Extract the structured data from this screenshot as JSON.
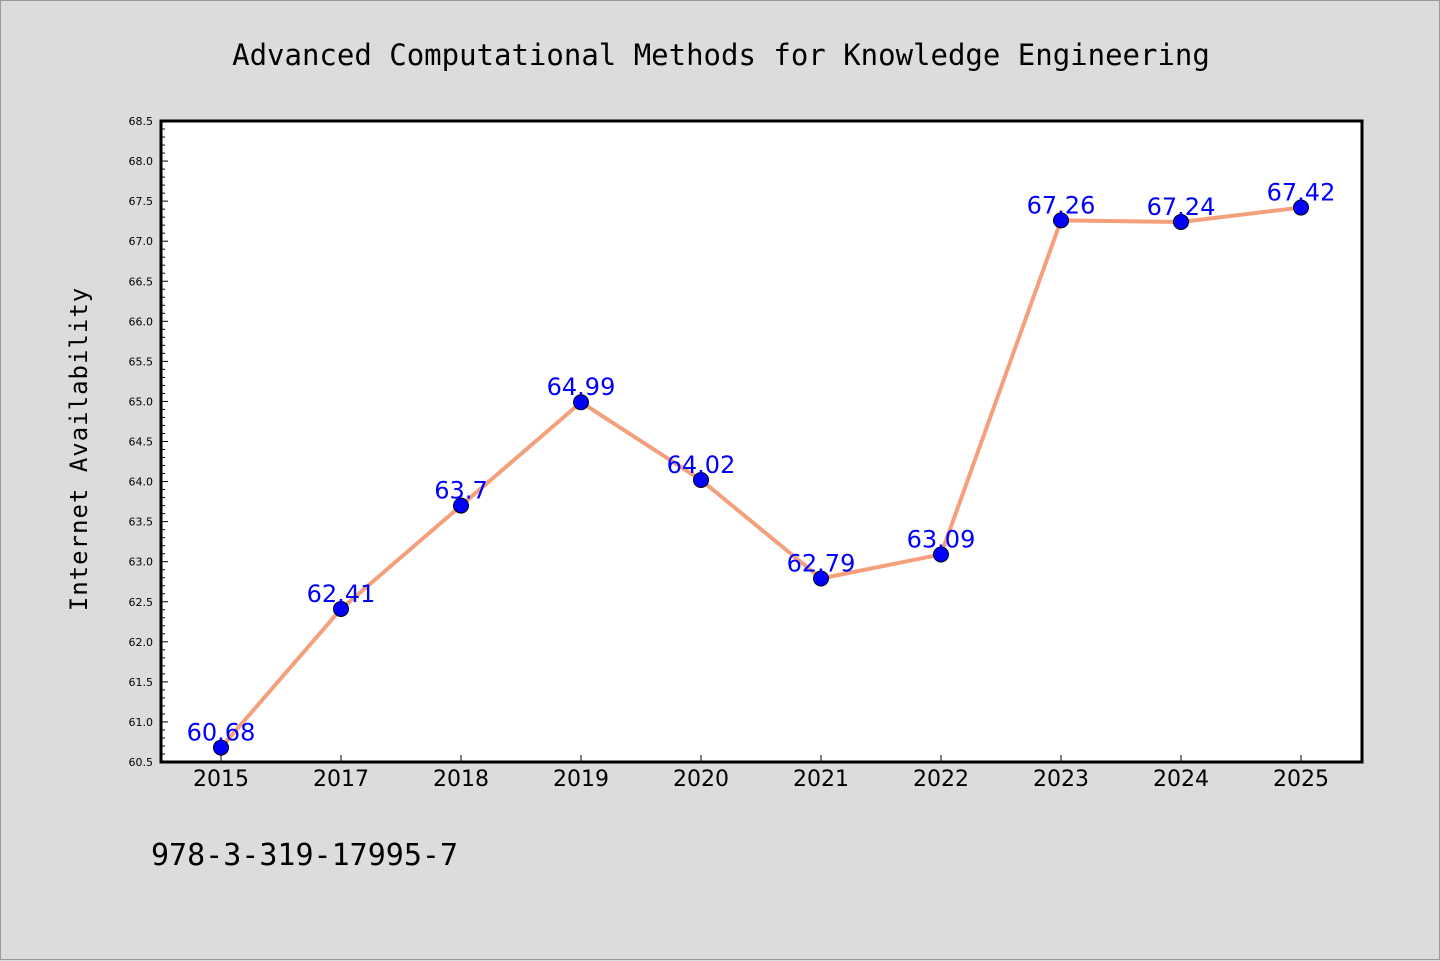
{
  "chart_data": {
    "type": "line",
    "title": "Advanced Computational Methods for Knowledge Engineering",
    "ylabel": "Internet Availability",
    "xlabel": "",
    "categories": [
      "2015",
      "2017",
      "2018",
      "2019",
      "2020",
      "2021",
      "2022",
      "2023",
      "2024",
      "2025"
    ],
    "values": [
      60.68,
      62.41,
      63.7,
      64.99,
      64.02,
      62.79,
      63.09,
      67.26,
      67.24,
      67.42
    ],
    "data_labels": [
      "60.68",
      "62.41",
      "63.7",
      "64.99",
      "64.02",
      "62.79",
      "63.09",
      "67.26",
      "67.24",
      "67.42"
    ],
    "ylim": [
      60.5,
      68.5
    ],
    "yticks": [
      "60.5",
      "61.0",
      "61.5",
      "62.0",
      "62.5",
      "63.0",
      "63.5",
      "64.0",
      "64.5",
      "65.0",
      "65.5",
      "66.0",
      "66.5",
      "67.0",
      "67.5",
      "68.0",
      "68.5"
    ],
    "grid": false,
    "legend": "none",
    "line_color": "#f4a07c",
    "marker_color": "#0000ff",
    "label_color": "#0000ff"
  },
  "footer": {
    "isbn": "978-3-319-17995-7"
  }
}
